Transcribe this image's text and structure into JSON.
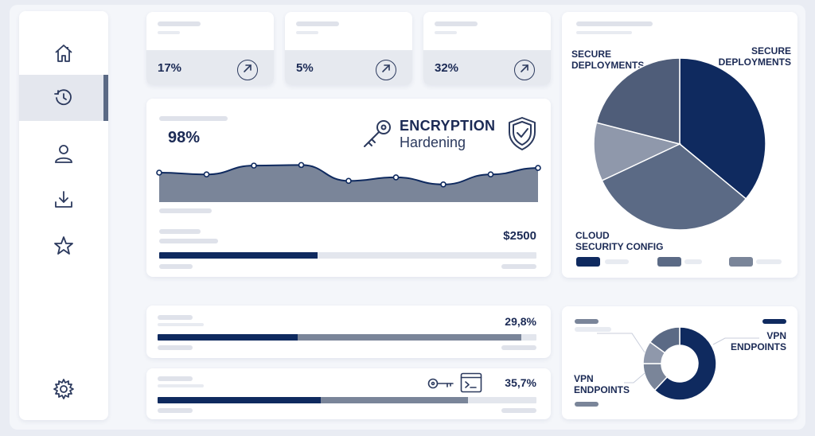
{
  "colors": {
    "navy": "#0f2a5f",
    "slate": "#5b6a85",
    "steel": "#7a8599",
    "gray": "#8f98ab",
    "track": "#e3e6ed"
  },
  "sidebar": {
    "items": [
      {
        "icon": "home-icon"
      },
      {
        "icon": "history-icon",
        "active": true
      },
      {
        "icon": "user-icon"
      },
      {
        "icon": "download-icon"
      },
      {
        "icon": "star-icon"
      }
    ],
    "footer_icon": "gear-icon"
  },
  "stats": [
    {
      "value": "17%",
      "icon": "arrow-up-right-icon"
    },
    {
      "value": "5%",
      "icon": "arrow-up-right-icon"
    },
    {
      "value": "32%",
      "icon": "arrow-up-right-icon"
    }
  ],
  "encryption_card": {
    "percent": "98%",
    "title": "ENCRYPTION",
    "subtitle": "Hardening",
    "amount": "$2500",
    "progress": 0.42,
    "chart_data": {
      "type": "area",
      "x": [
        1,
        2,
        3,
        4,
        5,
        6,
        7,
        8,
        9
      ],
      "values": [
        50,
        47,
        62,
        63,
        36,
        42,
        30,
        47,
        58
      ],
      "ylim": [
        0,
        100
      ]
    }
  },
  "pie_card": {
    "labels": {
      "secure_left": "SECURE\nDEPLOYMENTS",
      "secure_right": "SECURE\nDEPLOYMENTS",
      "cloud": "CLOUD\nSECURITY CONFIG"
    },
    "chart_data": {
      "type": "pie",
      "values": [
        36,
        32,
        11,
        21
      ]
    }
  },
  "progress_rows": [
    {
      "value": "29,8%",
      "segments": [
        0.37,
        0.59
      ]
    },
    {
      "value": "35,7%",
      "segments": [
        0.43,
        0.39
      ]
    }
  ],
  "donut_card": {
    "label_right": "VPN\nENDPOINTS",
    "label_left": "VPN\nENDPOINTS",
    "chart_data": {
      "type": "pie",
      "values": [
        62,
        13,
        10,
        15
      ]
    }
  }
}
